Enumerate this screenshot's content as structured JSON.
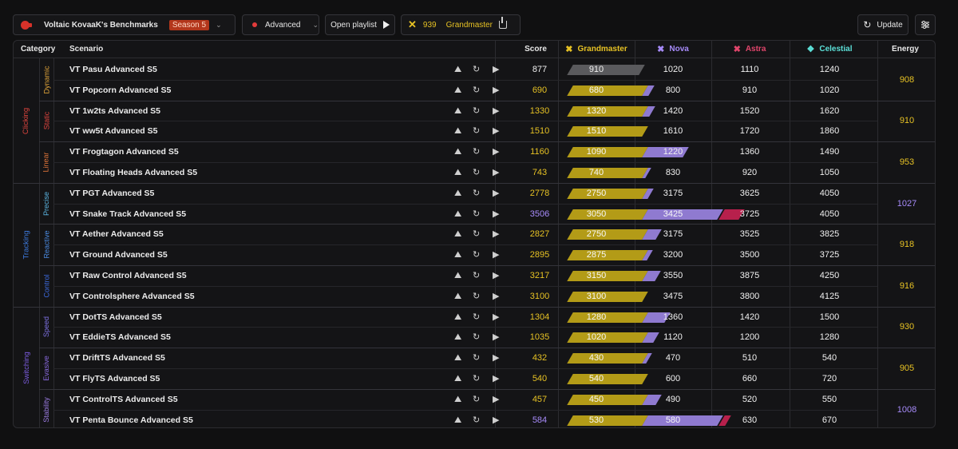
{
  "header": {
    "benchmark_title": "Voltaic KovaaK's Benchmarks",
    "season": "Season 5",
    "difficulty": "Advanced",
    "open_playlist": "Open playlist",
    "energy_value": "939",
    "rank": "Grandmaster",
    "update": "Update"
  },
  "columns": {
    "category": "Category",
    "scenario": "Scenario",
    "score": "Score",
    "energy": "Energy",
    "ranks": [
      {
        "label": "Grandmaster",
        "color": "#e7c224",
        "icon": "grandmaster-icon"
      },
      {
        "label": "Nova",
        "color": "#a78bfa",
        "icon": "nova-icon"
      },
      {
        "label": "Astra",
        "color": "#e0456b",
        "icon": "astra-icon"
      },
      {
        "label": "Celestial",
        "color": "#5ce0d8",
        "icon": "celestial-icon"
      }
    ]
  },
  "colors": {
    "gold": "#b39b17",
    "nova": "#8f7ad0",
    "astra": "#b7204c",
    "grey": "#5a5a5d",
    "score_gold": "#e7c224",
    "score_purple": "#a78bfa"
  },
  "categories": [
    {
      "label": "Clicking",
      "color": "#e0453e",
      "rows": [
        0,
        5
      ]
    },
    {
      "label": "Tracking",
      "color": "#3d7be0",
      "rows": [
        6,
        11
      ]
    },
    {
      "label": "Switching",
      "color": "#7c5ce0",
      "rows": [
        12,
        17
      ]
    }
  ],
  "subcategories": [
    {
      "label": "Dynamic",
      "color": "#e3a63a",
      "rows": [
        0,
        1
      ],
      "energy": "908"
    },
    {
      "label": "Static",
      "color": "#e0453e",
      "rows": [
        2,
        3
      ],
      "energy": "910"
    },
    {
      "label": "Linear",
      "color": "#e0753a",
      "rows": [
        4,
        5
      ],
      "energy": "953"
    },
    {
      "label": "Precise",
      "color": "#5ab4e0",
      "rows": [
        6,
        7
      ],
      "energy": "1027"
    },
    {
      "label": "Reactive",
      "color": "#4a8ae0",
      "rows": [
        8,
        9
      ],
      "energy": "918"
    },
    {
      "label": "Control",
      "color": "#3d6be0",
      "rows": [
        10,
        11
      ],
      "energy": "916"
    },
    {
      "label": "Speed",
      "color": "#7c70e0",
      "rows": [
        12,
        13
      ],
      "energy": "930"
    },
    {
      "label": "Evasive",
      "color": "#8a6ae0",
      "rows": [
        14,
        15
      ],
      "energy": "905"
    },
    {
      "label": "Stability",
      "color": "#9a7ae0",
      "rows": [
        16,
        17
      ],
      "energy": "1008"
    }
  ],
  "rows": [
    {
      "scenario": "VT Pasu Advanced S5",
      "score": "877",
      "thresholds": [
        "910",
        "1020",
        "1110",
        "1240"
      ],
      "tier": "none",
      "progress": 0.96
    },
    {
      "scenario": "VT Popcorn Advanced S5",
      "score": "690",
      "thresholds": [
        "680",
        "800",
        "910",
        "1020"
      ],
      "tier": "gold",
      "progress": 0.08
    },
    {
      "scenario": "VT 1w2ts Advanced S5",
      "score": "1330",
      "thresholds": [
        "1320",
        "1420",
        "1520",
        "1620"
      ],
      "tier": "gold",
      "progress": 0.1
    },
    {
      "scenario": "VT ww5t Advanced S5",
      "score": "1510",
      "thresholds": [
        "1510",
        "1610",
        "1720",
        "1860"
      ],
      "tier": "gold",
      "progress": 0.0
    },
    {
      "scenario": "VT Frogtagon Advanced S5",
      "score": "1160",
      "thresholds": [
        "1090",
        "1220",
        "1360",
        "1490"
      ],
      "tier": "gold",
      "progress": 0.54
    },
    {
      "scenario": "VT Floating Heads Advanced S5",
      "score": "743",
      "thresholds": [
        "740",
        "830",
        "920",
        "1050"
      ],
      "tier": "gold",
      "progress": 0.03
    },
    {
      "scenario": "VT PGT Advanced S5",
      "score": "2778",
      "thresholds": [
        "2750",
        "3175",
        "3625",
        "4050"
      ],
      "tier": "gold",
      "progress": 0.07
    },
    {
      "scenario": "VT Snake Track Advanced S5",
      "score": "3506",
      "thresholds": [
        "3050",
        "3425",
        "3725",
        "4050"
      ],
      "tier": "nova",
      "progress": 0.27
    },
    {
      "scenario": "VT Aether Advanced S5",
      "score": "2827",
      "thresholds": [
        "2750",
        "3175",
        "3525",
        "3825"
      ],
      "tier": "gold",
      "progress": 0.18
    },
    {
      "scenario": "VT Ground Advanced S5",
      "score": "2895",
      "thresholds": [
        "2875",
        "3200",
        "3500",
        "3725"
      ],
      "tier": "gold",
      "progress": 0.06
    },
    {
      "scenario": "VT Raw Control Advanced S5",
      "score": "3217",
      "thresholds": [
        "3150",
        "3550",
        "3875",
        "4250"
      ],
      "tier": "gold",
      "progress": 0.17
    },
    {
      "scenario": "VT Controlsphere Advanced S5",
      "score": "3100",
      "thresholds": [
        "3100",
        "3475",
        "3800",
        "4125"
      ],
      "tier": "gold",
      "progress": 0.0
    },
    {
      "scenario": "VT DotTS Advanced S5",
      "score": "1304",
      "thresholds": [
        "1280",
        "1360",
        "1420",
        "1500"
      ],
      "tier": "gold",
      "progress": 0.3
    },
    {
      "scenario": "VT EddieTS Advanced S5",
      "score": "1035",
      "thresholds": [
        "1020",
        "1120",
        "1200",
        "1280"
      ],
      "tier": "gold",
      "progress": 0.15
    },
    {
      "scenario": "VT DriftTS Advanced S5",
      "score": "432",
      "thresholds": [
        "430",
        "470",
        "510",
        "540"
      ],
      "tier": "gold",
      "progress": 0.05
    },
    {
      "scenario": "VT FlyTS Advanced S5",
      "score": "540",
      "thresholds": [
        "540",
        "600",
        "660",
        "720"
      ],
      "tier": "gold",
      "progress": 0.0
    },
    {
      "scenario": "VT ControlTS Advanced S5",
      "score": "457",
      "thresholds": [
        "450",
        "490",
        "520",
        "550"
      ],
      "tier": "gold",
      "progress": 0.18
    },
    {
      "scenario": "VT Penta Bounce Advanced S5",
      "score": "584",
      "thresholds": [
        "530",
        "580",
        "630",
        "670"
      ],
      "tier": "nova",
      "progress": 0.08
    }
  ]
}
